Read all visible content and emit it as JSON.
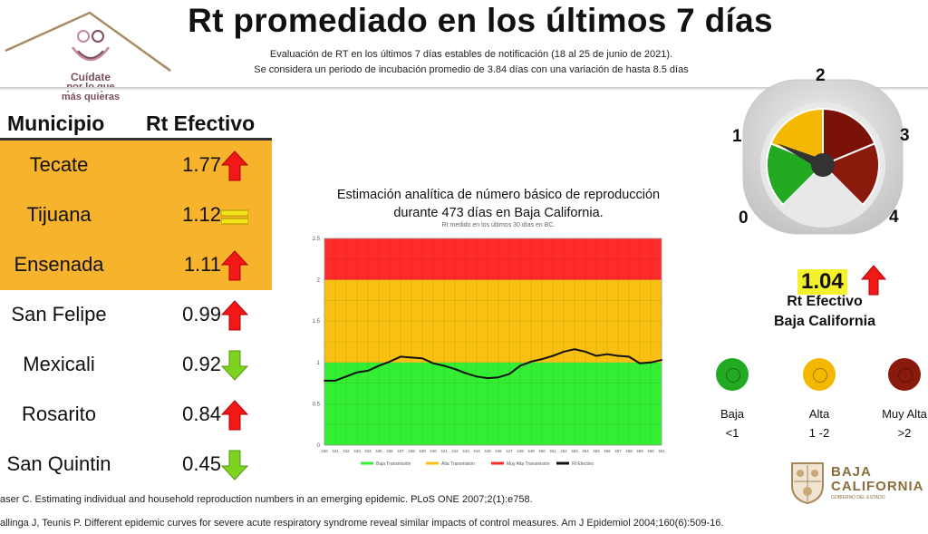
{
  "header": {
    "title": "Rt promediado en los últimos 7 días",
    "subtitle_line1": "Evaluación de RT en los últimos 7 días estables de notificación (18 al 25 de junio de 2021).",
    "subtitle_line2": "Se considera un periodo de incubación promedio de 3.84 días con una variación de hasta 8.5 días"
  },
  "logo": {
    "line1": "Cuídate",
    "line2": "por lo que",
    "line3": "más quieras",
    "color": "#7a4f60"
  },
  "table": {
    "col_municipio": "Municipio",
    "col_rt": "Rt Efectivo",
    "rows": [
      {
        "name": "Tecate",
        "value": "1.77",
        "trend": "up"
      },
      {
        "name": "Tijuana",
        "value": "1.12",
        "trend": "equal"
      },
      {
        "name": "Ensenada",
        "value": "1.11",
        "trend": "up"
      },
      {
        "name": "San Felipe",
        "value": "0.99",
        "trend": "up"
      },
      {
        "name": "Mexicali",
        "value": "0.92",
        "trend": "down"
      },
      {
        "name": "Rosarito",
        "value": "0.84",
        "trend": "up"
      },
      {
        "name": "San Quintin",
        "value": "0.45",
        "trend": "down"
      }
    ],
    "highlight_color": "#f7b32b"
  },
  "chart_data": {
    "type": "line",
    "title_line1": "Estimación analítica de número básico de reproducción",
    "title_line2": "durante 473 días en Baja California.",
    "subtitle": "Rt medido en los últimos 30 días en BC.",
    "x_start": 430,
    "x_end": 461,
    "x_ticks": [
      "430",
      "431",
      "432",
      "433",
      "434",
      "435",
      "436",
      "437",
      "438",
      "439",
      "440",
      "441",
      "442",
      "443",
      "444",
      "445",
      "446",
      "447",
      "448",
      "449",
      "450",
      "451",
      "452",
      "453",
      "454",
      "455",
      "456",
      "457",
      "458",
      "459",
      "460",
      "461"
    ],
    "y_ticks": [
      "0",
      "0.5",
      "1",
      "1.5",
      "2",
      "2.5"
    ],
    "ylim": [
      0,
      2.5
    ],
    "bands": [
      {
        "name": "Baja Transmisión",
        "from": 0,
        "to": 1,
        "color": "#33ee33"
      },
      {
        "name": "Alta Transmisión",
        "from": 1,
        "to": 2,
        "color": "#f8c010"
      },
      {
        "name": "Muy Alta Transmisión",
        "from": 2,
        "to": 2.5,
        "color": "#ff2a2a"
      }
    ],
    "series": [
      {
        "name": "Rt Efectivo",
        "color": "#111111",
        "x": [
          430,
          431,
          432,
          433,
          434,
          435,
          436,
          437,
          438,
          439,
          440,
          441,
          442,
          443,
          444,
          445,
          446,
          447,
          448,
          449,
          450,
          451,
          452,
          453,
          454,
          455,
          456,
          457,
          458,
          459,
          460,
          461
        ],
        "values": [
          0.78,
          0.78,
          0.83,
          0.88,
          0.9,
          0.96,
          1.01,
          1.07,
          1.06,
          1.05,
          0.99,
          0.96,
          0.92,
          0.87,
          0.83,
          0.81,
          0.82,
          0.86,
          0.96,
          1.01,
          1.04,
          1.08,
          1.13,
          1.16,
          1.13,
          1.08,
          1.1,
          1.08,
          1.07,
          0.99,
          1.0,
          1.03
        ]
      }
    ],
    "legend": [
      "Baja Transmisión",
      "Alta Transmisión",
      "Muy Alta Transmisión",
      "Rt Efectivo"
    ],
    "legend_position": "bottom"
  },
  "gauge": {
    "labels": [
      "0",
      "1",
      "2",
      "3",
      "4"
    ],
    "value": 1.04,
    "max": 4,
    "colors": {
      "baja": "#22aa22",
      "alta": "#f4b800",
      "muy_alta": "#7a1208"
    }
  },
  "summary": {
    "value": "1.04",
    "label_line1": "Rt Efectivo",
    "label_line2": "Baja California",
    "trend": "up"
  },
  "legend_dots": [
    {
      "label": "Baja",
      "range": "<1",
      "color": "#22aa22"
    },
    {
      "label": "Alta",
      "range": "1 -2",
      "color": "#f4b800"
    },
    {
      "label": "Muy Alta",
      "range": ">2",
      "color": "#8a1a0c"
    }
  ],
  "bc_logo": {
    "line1": "BAJA",
    "line2": "CALIFORNIA",
    "line3": "GOBIERNO DEL ESTADO"
  },
  "references": [
    "aser C. Estimating individual and household reproduction numbers in an emerging epidemic. PLoS ONE 2007;2(1):e758.",
    "allinga J, Teunis P. Different epidemic curves for severe acute respiratory syndrome reveal similar impacts of control measures. Am J Epidemiol 2004;160(6):509-16."
  ]
}
